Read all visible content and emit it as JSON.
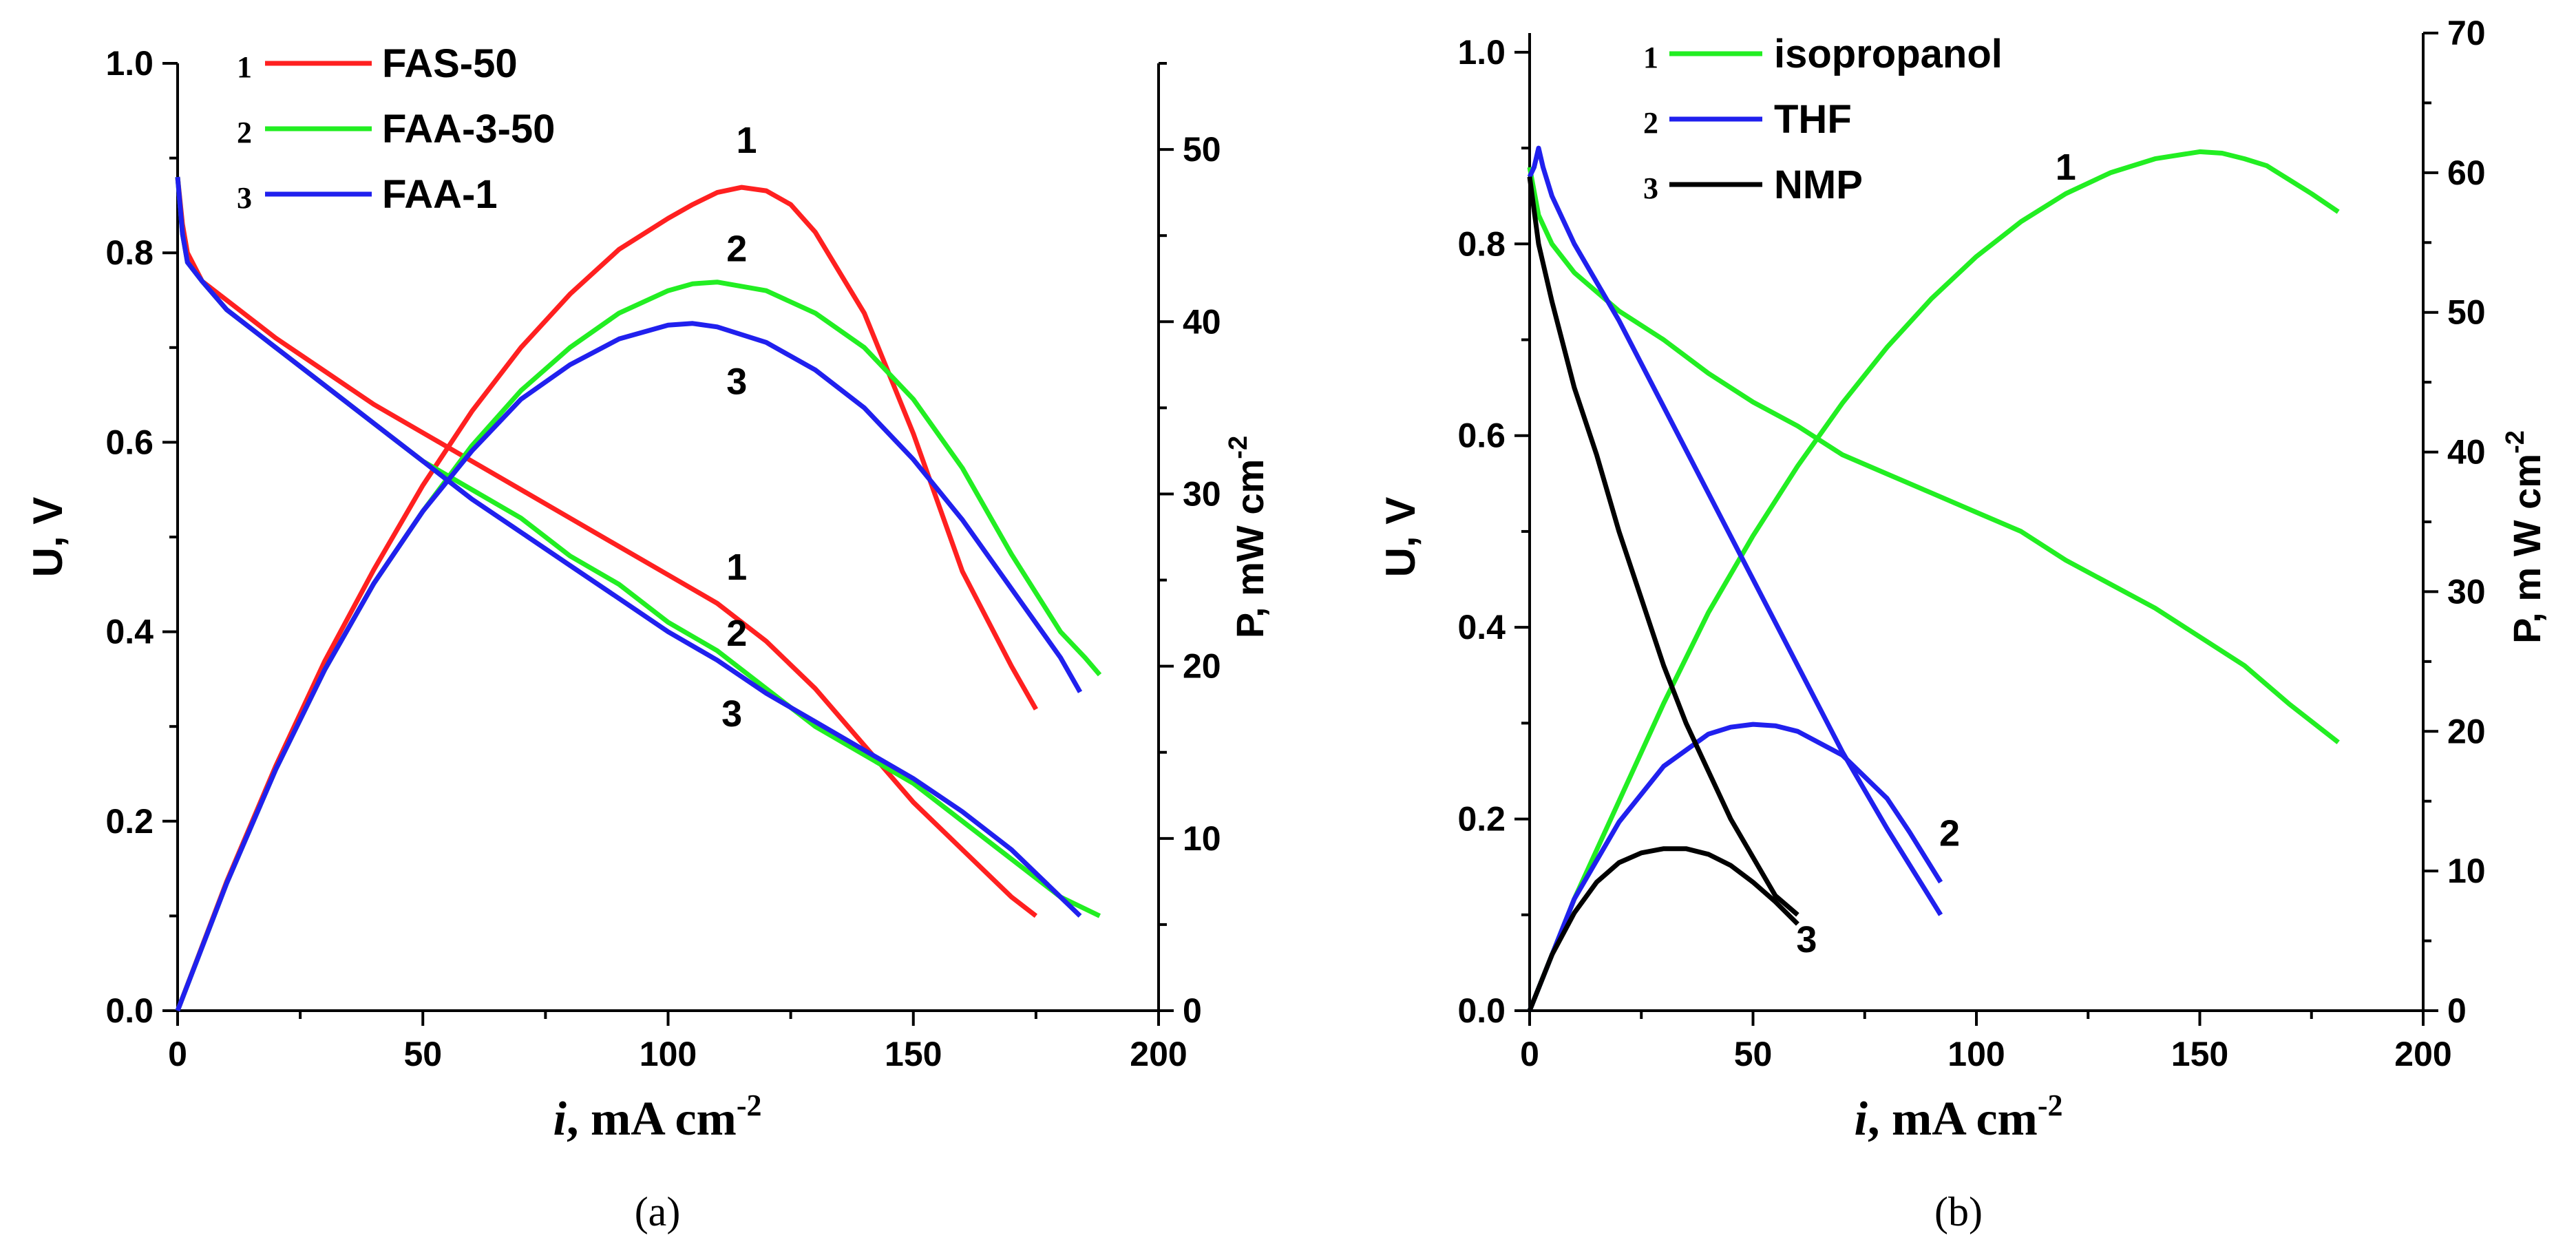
{
  "chart_data": [
    {
      "panel": "(a)",
      "type": "line",
      "title": "",
      "xlabel_italic": "i",
      "xlabel_rest": ", mA cm",
      "xlabel_sup": "-2",
      "ylabel_left": "U, V",
      "ylabel_right": "P, mW cm",
      "ylabel_right_sup": "-2",
      "xlim": [
        0,
        200
      ],
      "ylim_left": [
        0,
        1.0
      ],
      "ylim_right": [
        0,
        55
      ],
      "x_ticks": [
        0,
        50,
        100,
        150,
        200
      ],
      "x_tick_labels": [
        "0",
        "50",
        "100",
        "150",
        "200"
      ],
      "y_left_ticks": [
        0,
        0.2,
        0.4,
        0.6,
        0.8,
        1.0
      ],
      "y_left_tick_labels": [
        "0.0",
        "0.2",
        "0.4",
        "0.6",
        "0.8",
        "1.0"
      ],
      "y_right_ticks": [
        0,
        10,
        20,
        30,
        40,
        50
      ],
      "y_right_tick_labels": [
        "0",
        "10",
        "20",
        "30",
        "40",
        "50"
      ],
      "legend": [
        {
          "num": "1",
          "name": "FAS-50",
          "color": "#ff2020"
        },
        {
          "num": "2",
          "name": "FAA-3-50",
          "color": "#22ee22"
        },
        {
          "num": "3",
          "name": "FAA-1",
          "color": "#2020ee"
        }
      ],
      "series": [
        {
          "name": "FAS-50",
          "num": "1",
          "color": "#ff2020",
          "voltage": {
            "x": [
              0,
              1,
              2,
              5,
              10,
              20,
              30,
              40,
              50,
              60,
              70,
              80,
              90,
              100,
              110,
              120,
              130,
              140,
              150,
              160,
              170,
              175
            ],
            "y": [
              0.88,
              0.83,
              0.8,
              0.77,
              0.75,
              0.71,
              0.675,
              0.64,
              0.61,
              0.58,
              0.55,
              0.52,
              0.49,
              0.46,
              0.43,
              0.39,
              0.34,
              0.28,
              0.22,
              0.17,
              0.12,
              0.1
            ]
          },
          "power": {
            "x": [
              0,
              10,
              20,
              30,
              40,
              50,
              60,
              70,
              80,
              90,
              100,
              105,
              110,
              115,
              120,
              125,
              130,
              140,
              150,
              160,
              170,
              175
            ],
            "y": [
              0,
              7.5,
              14.2,
              20.3,
              25.6,
              30.5,
              34.8,
              38.5,
              41.6,
              44.2,
              46.0,
              46.8,
              47.5,
              47.8,
              47.6,
              46.8,
              45.2,
              40.5,
              33.5,
              25.5,
              20.0,
              17.5
            ]
          },
          "voltage_label_x": 114,
          "voltage_label_y": 0.455,
          "power_label_x": 116,
          "power_label_y": 49.8
        },
        {
          "name": "FAA-3-50",
          "num": "2",
          "color": "#22ee22",
          "voltage": {
            "x": [
              0,
              1,
              2,
              5,
              10,
              20,
              30,
              40,
              50,
              60,
              70,
              80,
              90,
              100,
              110,
              120,
              130,
              140,
              150,
              160,
              170,
              180,
              188
            ],
            "y": [
              0.88,
              0.82,
              0.79,
              0.77,
              0.74,
              0.7,
              0.66,
              0.62,
              0.58,
              0.55,
              0.52,
              0.48,
              0.45,
              0.41,
              0.38,
              0.34,
              0.3,
              0.27,
              0.24,
              0.2,
              0.16,
              0.12,
              0.1
            ]
          },
          "power": {
            "x": [
              0,
              10,
              20,
              30,
              40,
              50,
              60,
              70,
              80,
              90,
              100,
              105,
              110,
              120,
              130,
              140,
              150,
              160,
              170,
              180,
              185,
              188
            ],
            "y": [
              0,
              7.4,
              14,
              19.8,
              24.8,
              29.0,
              32.8,
              36.0,
              38.5,
              40.5,
              41.8,
              42.2,
              42.3,
              41.8,
              40.5,
              38.5,
              35.5,
              31.5,
              26.5,
              22.0,
              20.5,
              19.5
            ]
          },
          "voltage_label_x": 114,
          "voltage_label_y": 0.385,
          "power_label_x": 114,
          "power_label_y": 43.5
        },
        {
          "name": "FAA-1",
          "num": "3",
          "color": "#2020ee",
          "voltage": {
            "x": [
              0,
              1,
              2,
              5,
              10,
              20,
              30,
              40,
              50,
              60,
              70,
              80,
              90,
              100,
              110,
              120,
              130,
              140,
              150,
              160,
              170,
              180,
              184
            ],
            "y": [
              0.88,
              0.82,
              0.79,
              0.77,
              0.74,
              0.7,
              0.66,
              0.62,
              0.58,
              0.54,
              0.505,
              0.47,
              0.435,
              0.4,
              0.37,
              0.335,
              0.305,
              0.275,
              0.245,
              0.21,
              0.17,
              0.12,
              0.1
            ]
          },
          "power": {
            "x": [
              0,
              10,
              20,
              30,
              40,
              50,
              60,
              70,
              80,
              90,
              100,
              105,
              110,
              120,
              130,
              140,
              150,
              160,
              170,
              180,
              184
            ],
            "y": [
              0,
              7.4,
              14,
              19.8,
              24.8,
              29.0,
              32.5,
              35.5,
              37.5,
              39.0,
              39.8,
              39.9,
              39.7,
              38.8,
              37.2,
              35.0,
              32.0,
              28.5,
              24.5,
              20.5,
              18.5
            ]
          },
          "voltage_label_x": 113,
          "voltage_label_y": 0.3,
          "power_label_x": 114,
          "power_label_y": 35.8
        }
      ]
    },
    {
      "panel": "(b)",
      "type": "line",
      "title": "",
      "xlabel_italic": "i",
      "xlabel_rest": ", mA cm",
      "xlabel_sup": "-2",
      "ylabel_left": "U, V",
      "ylabel_right": "P, m W cm",
      "ylabel_right_sup": "-2",
      "xlim": [
        0,
        200
      ],
      "ylim_left": [
        0,
        1.02
      ],
      "ylim_right": [
        0,
        70
      ],
      "x_ticks": [
        0,
        50,
        100,
        150,
        200
      ],
      "x_tick_labels": [
        "0",
        "50",
        "100",
        "150",
        "200"
      ],
      "y_left_ticks": [
        0,
        0.2,
        0.4,
        0.6,
        0.8,
        1.0
      ],
      "y_left_tick_labels": [
        "0.0",
        "0.2",
        "0.4",
        "0.6",
        "0.8",
        "1.0"
      ],
      "y_right_ticks": [
        0,
        10,
        20,
        30,
        40,
        50,
        60,
        70
      ],
      "y_right_tick_labels": [
        "0",
        "10",
        "20",
        "30",
        "40",
        "50",
        "60",
        "70"
      ],
      "legend": [
        {
          "num": "1",
          "name": "isopropanol",
          "color": "#22ee22"
        },
        {
          "num": "2",
          "name": "THF",
          "color": "#2020ee"
        },
        {
          "num": "3",
          "name": "NMP",
          "color": "#000000"
        }
      ],
      "series": [
        {
          "name": "isopropanol",
          "num": "1",
          "color": "#22ee22",
          "voltage": {
            "x": [
              0,
              2,
              5,
              10,
              20,
              30,
              40,
              50,
              60,
              70,
              80,
              90,
              100,
              110,
              120,
              130,
              140,
              150,
              160,
              170,
              181
            ],
            "y": [
              0.88,
              0.83,
              0.8,
              0.77,
              0.73,
              0.7,
              0.665,
              0.635,
              0.61,
              0.58,
              0.56,
              0.54,
              0.52,
              0.5,
              0.47,
              0.445,
              0.42,
              0.39,
              0.36,
              0.32,
              0.28
            ]
          },
          "power": {
            "x": [
              0,
              10,
              20,
              30,
              40,
              50,
              60,
              70,
              80,
              90,
              100,
              110,
              120,
              130,
              140,
              150,
              155,
              160,
              165,
              170,
              175,
              181
            ],
            "y": [
              0,
              8,
              15,
              22,
              28.5,
              34,
              39,
              43.5,
              47.5,
              51,
              54,
              56.5,
              58.5,
              60,
              61,
              61.5,
              61.4,
              61.0,
              60.5,
              59.5,
              58.5,
              57.2
            ]
          },
          "power_label_x": 120,
          "power_label_y": 59.5
        },
        {
          "name": "THF",
          "num": "2",
          "color": "#2020ee",
          "voltage": {
            "x": [
              0,
              1,
              2,
              3,
              5,
              10,
              20,
              30,
              40,
              50,
              60,
              70,
              80,
              92
            ],
            "y": [
              0.87,
              0.88,
              0.9,
              0.88,
              0.85,
              0.8,
              0.72,
              0.63,
              0.54,
              0.45,
              0.36,
              0.27,
              0.19,
              0.1
            ]
          },
          "power": {
            "x": [
              0,
              10,
              20,
              30,
              40,
              45,
              50,
              55,
              60,
              70,
              80,
              85,
              92
            ],
            "y": [
              0,
              8,
              13.5,
              17.5,
              19.8,
              20.3,
              20.5,
              20.4,
              20.0,
              18.3,
              15.2,
              12.8,
              9.2
            ]
          },
          "power_label_x": 94,
          "power_label_y": 11.8
        },
        {
          "name": "NMP",
          "num": "3",
          "color": "#000000",
          "voltage": {
            "x": [
              0,
              2,
              5,
              10,
              15,
              20,
              25,
              30,
              35,
              40,
              45,
              50,
              55,
              60
            ],
            "y": [
              0.87,
              0.8,
              0.74,
              0.65,
              0.58,
              0.5,
              0.43,
              0.36,
              0.3,
              0.25,
              0.2,
              0.16,
              0.12,
              0.1
            ]
          },
          "power": {
            "x": [
              0,
              5,
              10,
              15,
              20,
              25,
              30,
              35,
              40,
              45,
              50,
              55,
              60
            ],
            "y": [
              0,
              4,
              7,
              9.2,
              10.6,
              11.3,
              11.6,
              11.6,
              11.2,
              10.4,
              9.2,
              7.8,
              6.2
            ]
          },
          "power_label_x": 62,
          "power_label_y": 4.2
        }
      ]
    }
  ]
}
